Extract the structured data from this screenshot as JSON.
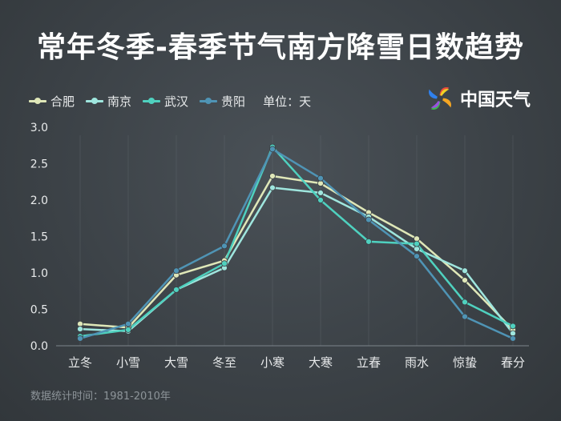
{
  "title": "常年冬季-春季节气南方降雪日数趋势",
  "legend": {
    "items": [
      {
        "name": "合肥",
        "color": "#dfe7b8"
      },
      {
        "name": "南京",
        "color": "#9fe6de"
      },
      {
        "name": "武汉",
        "color": "#4fd1bf"
      },
      {
        "name": "贵阳",
        "color": "#4f94b5"
      }
    ],
    "unit": "单位：天"
  },
  "logo": {
    "text": "中国天气",
    "icon": "china-weather-pinwheel-icon"
  },
  "source": "数据统计时间：1981-2010年",
  "chart_data": {
    "type": "line",
    "categories": [
      "立冬",
      "小雪",
      "大雪",
      "冬至",
      "小寒",
      "大寒",
      "立春",
      "雨水",
      "惊蛰",
      "春分"
    ],
    "ylim": [
      0,
      3.0
    ],
    "yticks": [
      "0.0",
      "0.5",
      "1.0",
      "1.5",
      "2.0",
      "2.5",
      "3.0"
    ],
    "grid": "vertical",
    "series": [
      {
        "name": "合肥",
        "color": "#dfe7b8",
        "values": [
          0.3,
          0.25,
          0.97,
          1.17,
          2.33,
          2.23,
          1.83,
          1.47,
          0.9,
          0.22
        ]
      },
      {
        "name": "南京",
        "color": "#9fe6de",
        "values": [
          0.23,
          0.2,
          0.77,
          1.07,
          2.17,
          2.1,
          1.77,
          1.33,
          1.03,
          0.17
        ]
      },
      {
        "name": "武汉",
        "color": "#4fd1bf",
        "values": [
          0.13,
          0.22,
          0.77,
          1.13,
          2.73,
          2.0,
          1.43,
          1.4,
          0.6,
          0.27
        ]
      },
      {
        "name": "贵阳",
        "color": "#4f94b5",
        "values": [
          0.1,
          0.3,
          1.03,
          1.37,
          2.7,
          2.3,
          1.73,
          1.23,
          0.4,
          0.1
        ]
      }
    ]
  }
}
